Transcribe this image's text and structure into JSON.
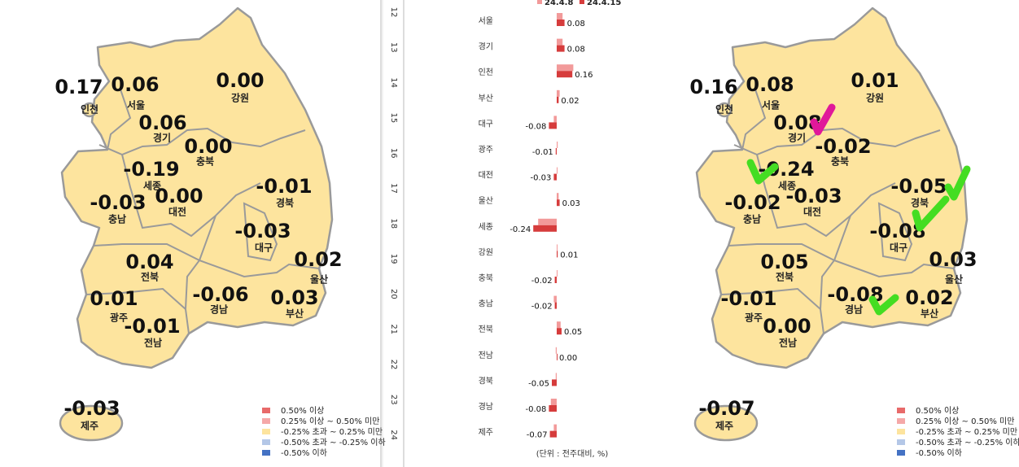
{
  "chart_data": {
    "type": "bar",
    "orientation": "horizontal",
    "categories": [
      "서울",
      "경기",
      "인천",
      "부산",
      "대구",
      "광주",
      "대전",
      "울산",
      "세종",
      "강원",
      "충북",
      "충남",
      "전북",
      "전남",
      "경북",
      "경남",
      "제주"
    ],
    "series": [
      {
        "name": "24.4.8",
        "color": "#f29a9a",
        "values": [
          0.06,
          0.06,
          0.17,
          0.03,
          -0.03,
          0.01,
          0.0,
          0.02,
          -0.19,
          0.0,
          0.0,
          -0.03,
          0.04,
          -0.01,
          -0.01,
          -0.06,
          -0.03
        ],
        "value_labels": [
          "0.06",
          "0.06",
          "0.17",
          "0.03",
          "-0.03",
          "0.01",
          "0.00",
          "0.02",
          "-0.19",
          "0.00",
          "0.00",
          "-0.03",
          "0.04",
          "-0.01",
          "-0.01",
          "-0.06",
          "-0.03"
        ]
      },
      {
        "name": "24.4.15",
        "color": "#d63c3c",
        "values": [
          0.08,
          0.08,
          0.16,
          0.02,
          -0.08,
          -0.01,
          -0.03,
          0.03,
          -0.24,
          0.01,
          -0.02,
          -0.02,
          0.05,
          0.0,
          -0.05,
          -0.08,
          -0.07
        ],
        "value_labels": [
          "0.08",
          "0.08",
          "0.16",
          "0.02",
          "-0.08",
          "-0.01",
          "-0.03",
          "0.03",
          "-0.24",
          "0.01",
          "-0.02",
          "-0.02",
          "0.05",
          "0.00",
          "-0.05",
          "-0.08",
          "-0.07"
        ]
      }
    ],
    "xlim": [
      -0.5,
      0.5
    ],
    "unit_note": "(단위 : 전주대비, %)"
  },
  "ruler_ticks": [
    12,
    13,
    14,
    15,
    16,
    17,
    18,
    19,
    20,
    21,
    22,
    23,
    24
  ],
  "legend": [
    {
      "label": "0.50% 이상",
      "color": "#e86a6a"
    },
    {
      "label": "0.25% 이상 ~ 0.50% 미만",
      "color": "#f5a8a8"
    },
    {
      "label": "-0.25% 초과 ~ 0.25% 미만",
      "color": "#fde49e"
    },
    {
      "label": "-0.50% 초과 ~ -0.25% 이하",
      "color": "#b4c7e7"
    },
    {
      "label": "-0.50% 이하",
      "color": "#4472c4"
    }
  ]
}
